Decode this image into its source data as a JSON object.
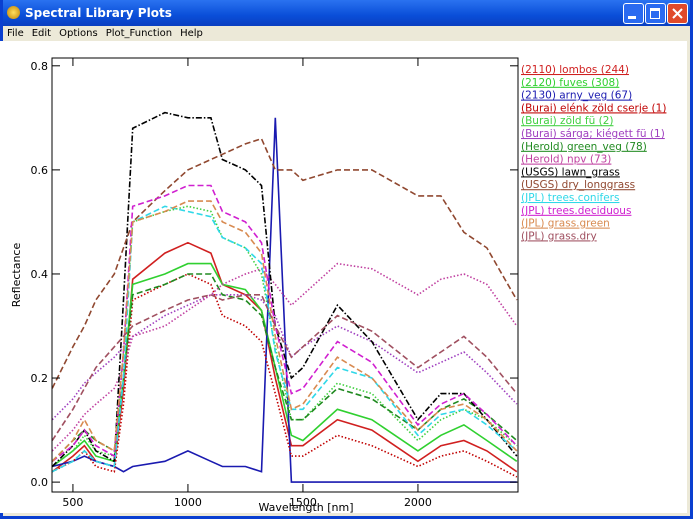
{
  "window": {
    "title": "Spectral Library Plots",
    "menu": [
      "File",
      "Edit",
      "Options",
      "Plot_Function",
      "Help"
    ]
  },
  "chart_data": {
    "type": "line",
    "xlabel": "Wavelength [nm]",
    "ylabel": "Reflectance",
    "xlim": [
      409,
      2435
    ],
    "ylim": [
      -0.019,
      0.815
    ],
    "xticks": [
      500,
      1000,
      1500,
      2000
    ],
    "yticks": [
      {
        "value": 0,
        "label": "0.0"
      },
      0.2,
      0.4,
      0.6,
      0.8
    ],
    "x": [
      410,
      500,
      550,
      600,
      680,
      720,
      760,
      900,
      1000,
      1100,
      1150,
      1250,
      1320,
      1380,
      1450,
      1500,
      1650,
      1800,
      2000,
      2100,
      2200,
      2300,
      2430
    ],
    "series": [
      {
        "name": "(2110) lombos (244)",
        "color": "#d02020",
        "style": "solid",
        "values": [
          0.02,
          0.05,
          0.07,
          0.04,
          0.03,
          0.18,
          0.39,
          0.44,
          0.46,
          0.44,
          0.38,
          0.36,
          0.33,
          0.2,
          0.07,
          0.07,
          0.12,
          0.1,
          0.04,
          0.07,
          0.08,
          0.06,
          0.02
        ]
      },
      {
        "name": "(2120) fuves (308)",
        "color": "#30d030",
        "style": "solid",
        "values": [
          0.03,
          0.06,
          0.08,
          0.05,
          0.04,
          0.2,
          0.38,
          0.4,
          0.42,
          0.42,
          0.38,
          0.37,
          0.33,
          0.22,
          0.09,
          0.08,
          0.14,
          0.12,
          0.06,
          0.09,
          0.11,
          0.08,
          0.04
        ]
      },
      {
        "name": "(2130) arny_veg (67)",
        "color": "#1a1ab0",
        "style": "solid",
        "values": [
          0.03,
          0.04,
          0.05,
          0.04,
          0.03,
          0.02,
          0.03,
          0.04,
          0.06,
          0.04,
          0.03,
          0.03,
          0.02,
          0.7,
          0.0,
          0.0,
          0.0,
          0.0,
          0.0,
          0.0,
          0.0,
          0.0,
          0.0
        ]
      },
      {
        "name": "(Burai) elénk zöld cserje (1)",
        "color": "#c00000",
        "style": "dotted",
        "values": [
          0.02,
          0.04,
          0.06,
          0.03,
          0.02,
          0.15,
          0.35,
          0.38,
          0.4,
          0.38,
          0.32,
          0.3,
          0.27,
          0.17,
          0.05,
          0.05,
          0.09,
          0.07,
          0.03,
          0.05,
          0.06,
          0.04,
          0.01
        ]
      },
      {
        "name": "(Burai) zöld fü (2)",
        "color": "#40d040",
        "style": "dotted",
        "values": [
          0.03,
          0.06,
          0.09,
          0.06,
          0.05,
          0.25,
          0.5,
          0.52,
          0.53,
          0.52,
          0.47,
          0.45,
          0.4,
          0.26,
          0.12,
          0.12,
          0.19,
          0.17,
          0.08,
          0.12,
          0.14,
          0.12,
          0.07
        ]
      },
      {
        "name": "(Burai) sárga; kiégett fü (1)",
        "color": "#a040c0",
        "style": "dotted",
        "values": [
          0.12,
          0.16,
          0.19,
          0.21,
          0.24,
          0.26,
          0.28,
          0.32,
          0.34,
          0.36,
          0.36,
          0.36,
          0.35,
          0.32,
          0.24,
          0.26,
          0.3,
          0.27,
          0.21,
          0.23,
          0.25,
          0.21,
          0.15
        ]
      },
      {
        "name": "(Herold) green_veg (78)",
        "color": "#208a20",
        "style": "dashed",
        "values": [
          0.04,
          0.08,
          0.1,
          0.08,
          0.06,
          0.2,
          0.36,
          0.38,
          0.4,
          0.4,
          0.36,
          0.35,
          0.32,
          0.22,
          0.12,
          0.12,
          0.18,
          0.16,
          0.1,
          0.14,
          0.16,
          0.13,
          0.08
        ]
      },
      {
        "name": "(Herold) npv (73)",
        "color": "#c040a0",
        "style": "dotted",
        "values": [
          0.06,
          0.1,
          0.13,
          0.15,
          0.18,
          0.22,
          0.28,
          0.3,
          0.33,
          0.36,
          0.38,
          0.4,
          0.41,
          0.38,
          0.34,
          0.36,
          0.42,
          0.41,
          0.36,
          0.39,
          0.4,
          0.38,
          0.3
        ]
      },
      {
        "name": "(USGS) lawn_grass",
        "color": "#000000",
        "style": "dashdot",
        "values": [
          0.03,
          0.07,
          0.1,
          0.06,
          0.04,
          0.35,
          0.68,
          0.71,
          0.7,
          0.7,
          0.62,
          0.6,
          0.57,
          0.3,
          0.2,
          0.22,
          0.34,
          0.27,
          0.12,
          0.17,
          0.17,
          0.12,
          0.05
        ]
      },
      {
        "name": "(USGS) dry_longgrass",
        "color": "#904830",
        "style": "dashed",
        "values": [
          0.18,
          0.26,
          0.3,
          0.35,
          0.4,
          0.45,
          0.5,
          0.56,
          0.6,
          0.62,
          0.63,
          0.65,
          0.66,
          0.6,
          0.6,
          0.58,
          0.6,
          0.6,
          0.55,
          0.55,
          0.48,
          0.45,
          0.35
        ]
      },
      {
        "name": "(JPL) trees.conifers",
        "color": "#30d8e8",
        "style": "dashed",
        "values": [
          0.02,
          0.04,
          0.06,
          0.04,
          0.03,
          0.2,
          0.5,
          0.53,
          0.52,
          0.51,
          0.47,
          0.45,
          0.42,
          0.25,
          0.14,
          0.14,
          0.22,
          0.2,
          0.09,
          0.13,
          0.14,
          0.11,
          0.06
        ]
      },
      {
        "name": "(JPL) trees.deciduous",
        "color": "#d020d0",
        "style": "dashed",
        "values": [
          0.04,
          0.07,
          0.1,
          0.07,
          0.05,
          0.25,
          0.53,
          0.55,
          0.57,
          0.57,
          0.52,
          0.5,
          0.46,
          0.3,
          0.17,
          0.18,
          0.27,
          0.23,
          0.11,
          0.15,
          0.17,
          0.13,
          0.07
        ]
      },
      {
        "name": "(JPL) grass.green",
        "color": "#d88a50",
        "style": "dashed",
        "values": [
          0.04,
          0.08,
          0.12,
          0.08,
          0.06,
          0.25,
          0.5,
          0.52,
          0.54,
          0.54,
          0.5,
          0.48,
          0.44,
          0.28,
          0.14,
          0.15,
          0.24,
          0.2,
          0.1,
          0.14,
          0.15,
          0.12,
          0.06
        ]
      },
      {
        "name": "(JPL) grass.dry",
        "color": "#a05060",
        "style": "dashed",
        "values": [
          0.08,
          0.14,
          0.18,
          0.22,
          0.26,
          0.28,
          0.3,
          0.33,
          0.35,
          0.36,
          0.35,
          0.36,
          0.36,
          0.3,
          0.24,
          0.26,
          0.32,
          0.29,
          0.22,
          0.25,
          0.28,
          0.24,
          0.17
        ]
      }
    ]
  }
}
